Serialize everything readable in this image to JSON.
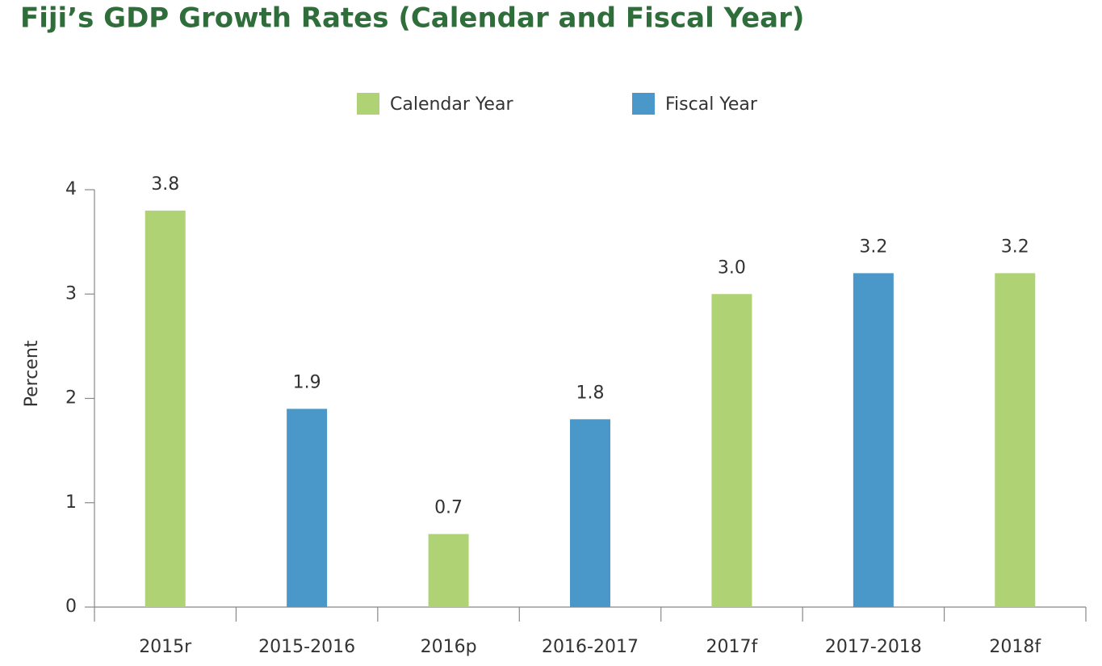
{
  "chart_data": {
    "type": "bar",
    "title": "Fiji’s GDP Growth Rates (Calendar and Fiscal Year)",
    "y_label": "Percent",
    "categories": [
      "2015r",
      "2015-2016",
      "2016p",
      "2016-2017",
      "2017f",
      "2017-2018",
      "2018f"
    ],
    "series": [
      {
        "name": "Calendar Year",
        "color": "#afd275",
        "values": [
          3.8,
          null,
          0.7,
          null,
          3.0,
          null,
          3.2
        ],
        "value_labels": [
          "3.8",
          null,
          "0.7",
          null,
          "3.0",
          null,
          "3.2"
        ]
      },
      {
        "name": "Fiscal Year",
        "color": "#4a98c9",
        "values": [
          null,
          1.9,
          null,
          1.8,
          null,
          3.2,
          null
        ],
        "value_labels": [
          null,
          "1.9",
          null,
          "1.8",
          null,
          "3.2",
          null
        ]
      }
    ],
    "ylim": [
      0,
      4
    ],
    "yticks": [
      0,
      1,
      2,
      3,
      4
    ],
    "grid": false
  }
}
